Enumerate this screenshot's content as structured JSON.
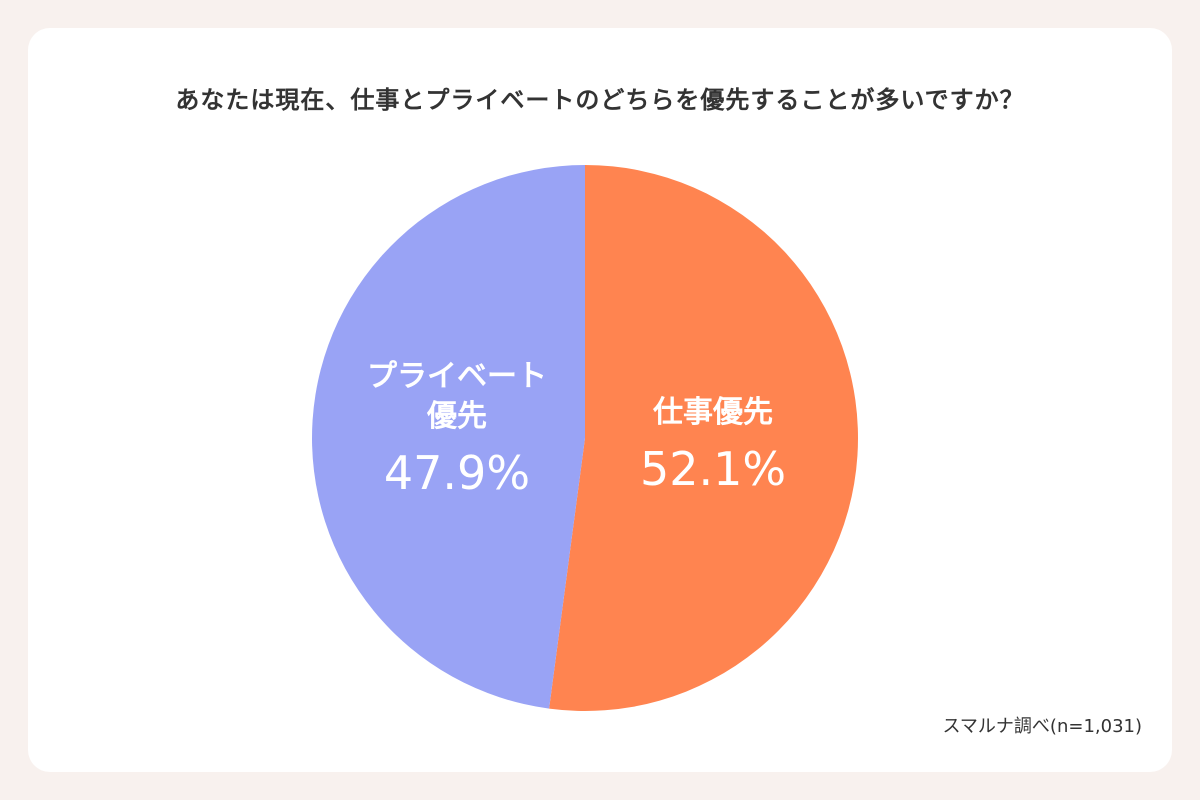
{
  "chart_data": {
    "type": "pie",
    "title": "あなたは現在、仕事とプライベートのどちらを優先することが多いですか？",
    "categories": [
      "仕事優先",
      "プライベート優先"
    ],
    "values": [
      52.1,
      47.9
    ],
    "value_labels": [
      "52.1%",
      "47.9%"
    ],
    "colors": [
      "#ff8450",
      "#99a3f5"
    ],
    "source": "スマルナ調べ(n=1,031)"
  }
}
